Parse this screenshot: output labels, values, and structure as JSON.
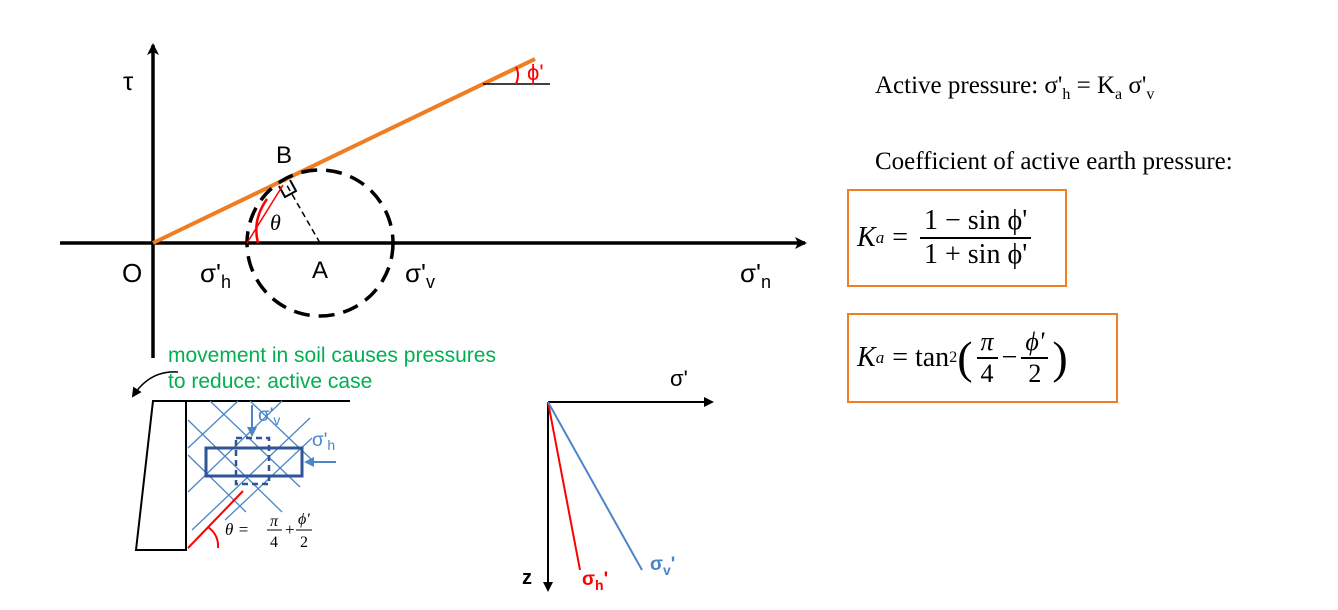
{
  "mohr": {
    "tau_label": "τ",
    "origin_label": "O",
    "point_b": "B",
    "point_a": "A",
    "theta": "θ",
    "sigma_h": "σ'",
    "sigma_h_sub": "h",
    "sigma_v": "σ'",
    "sigma_v_sub": "v",
    "sigma_n": "σ'",
    "sigma_n_sub": "n",
    "phi": "ϕ'"
  },
  "note": {
    "line1": "movement in soil causes pressures",
    "line2": "to reduce: active case"
  },
  "wall": {
    "sigma_v": "σ'",
    "sigma_v_sub": "v",
    "sigma_h": "σ'",
    "sigma_h_sub": "h",
    "theta_eq": "θ =",
    "pi": "π",
    "four": "4",
    "plus": "+",
    "phi_prime": "ϕ'",
    "two": "2"
  },
  "depth": {
    "sigma_axis": "σ'",
    "z": "z",
    "sigma_h": "σ",
    "sigma_h_sub": "h",
    "sigma_h_prime": "'",
    "sigma_v": "σ",
    "sigma_v_sub": "v",
    "sigma_v_prime": "'"
  },
  "text": {
    "active_pressure_label": "Active pressure: σ'",
    "active_h": "h",
    "active_eq": " = K",
    "active_a": "a",
    "active_sv": " σ'",
    "active_v": "v",
    "coefficient": "Coefficient of active earth pressure:"
  },
  "formula1": {
    "k": "K",
    "a": "a",
    "eq": "=",
    "num": "1 − sin ϕ'",
    "den": "1 + sin ϕ'"
  },
  "formula2": {
    "k": "K",
    "a": "a",
    "eq": "= tan",
    "sq": "2",
    "pi": "π",
    "four": "4",
    "minus": "−",
    "phi": "ϕ'",
    "two": "2"
  },
  "colors": {
    "orange": "#ef7d22",
    "red": "#ff0000",
    "green": "#00b050",
    "blue": "#4a86c8",
    "dark_blue": "#2f5597"
  }
}
